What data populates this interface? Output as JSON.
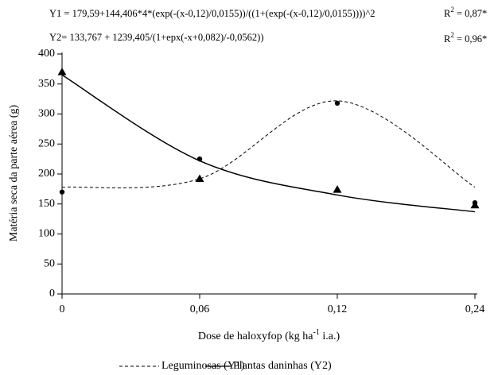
{
  "chart_data": {
    "type": "line",
    "annotations": [
      "Y1 = 179,59+144,406*4*(exp(-(x-0,12)/0,0155))/((1+(exp(-(x-0,12)/0,0155))))^2",
      "Y2= 133,767 + 1239,405/(1+epx(-x+0,082)/-0,0562))"
    ],
    "r2_labels": [
      [
        "R",
        "2",
        " = 0,87*"
      ],
      [
        "R",
        "2",
        " = 0,96*"
      ]
    ],
    "xlabel": [
      "Dose de haloxyfop (kg ha",
      "-1",
      " i.a.)"
    ],
    "ylabel": "Matéria seca  da parte aérea (g)",
    "categories": [
      "0",
      "0,06",
      "0,12",
      "0,24"
    ],
    "series": [
      {
        "name": "Leguminosas (Y1)",
        "color": "#000000",
        "dash": true,
        "values": [
          178,
          192,
          322,
          178
        ]
      },
      {
        "name": "Plantas daninhas (Y2)",
        "color": "#000000",
        "dash": false,
        "values": [
          365,
          222,
          165,
          137
        ]
      }
    ],
    "points": [
      {
        "marker": "circle",
        "color": "#000000",
        "values": [
          170,
          225,
          318,
          152
        ]
      },
      {
        "marker": "triangle",
        "color": "#000000",
        "values": [
          370,
          192,
          174,
          148
        ]
      }
    ],
    "ylim": [
      0,
      400
    ],
    "yticks": [
      0,
      50,
      100,
      150,
      200,
      250,
      300,
      350,
      400
    ],
    "grid": false,
    "legend": "bottom"
  }
}
